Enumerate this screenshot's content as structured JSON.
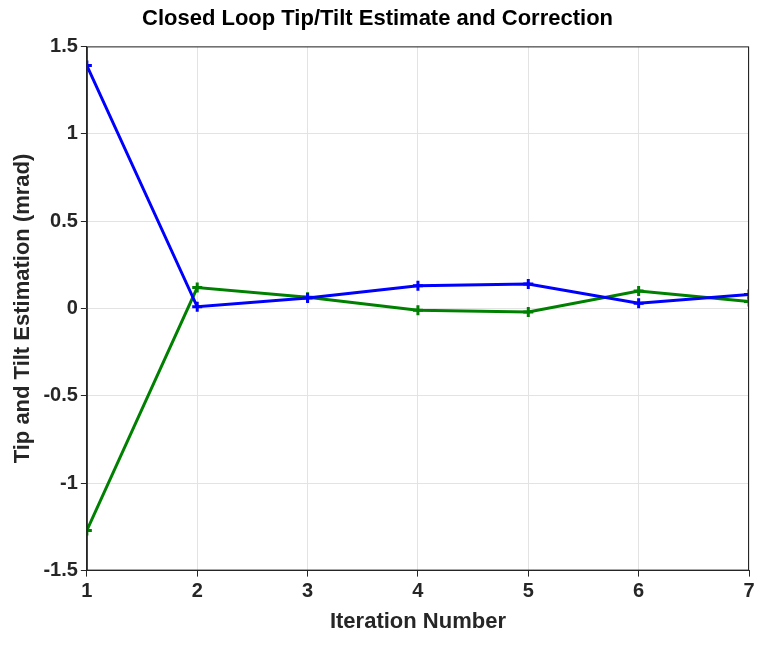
{
  "chart_data": {
    "type": "line",
    "title": "Closed Loop Tip/Tilt Estimate and Correction",
    "x_label": "Iteration Number",
    "y_label": "Tip and Tilt Estimation (mrad)",
    "x": [
      1,
      2,
      3,
      4,
      5,
      6,
      7
    ],
    "series": [
      {
        "color": "#0000ff",
        "values": [
          1.39,
          0.01,
          0.06,
          0.13,
          0.14,
          0.03,
          0.08
        ]
      },
      {
        "color": "#008000",
        "values": [
          -1.27,
          0.12,
          0.065,
          -0.01,
          -0.02,
          0.1,
          0.04
        ]
      }
    ],
    "xlim": [
      1,
      7
    ],
    "xticks": [
      1,
      2,
      3,
      4,
      5,
      6,
      7
    ],
    "ylim": [
      -1.5,
      1.5
    ],
    "yticks": [
      -1.5,
      -1,
      -0.5,
      0,
      0.5,
      1,
      1.5
    ],
    "grid": true,
    "marker": "cross",
    "line_style": "solid"
  }
}
